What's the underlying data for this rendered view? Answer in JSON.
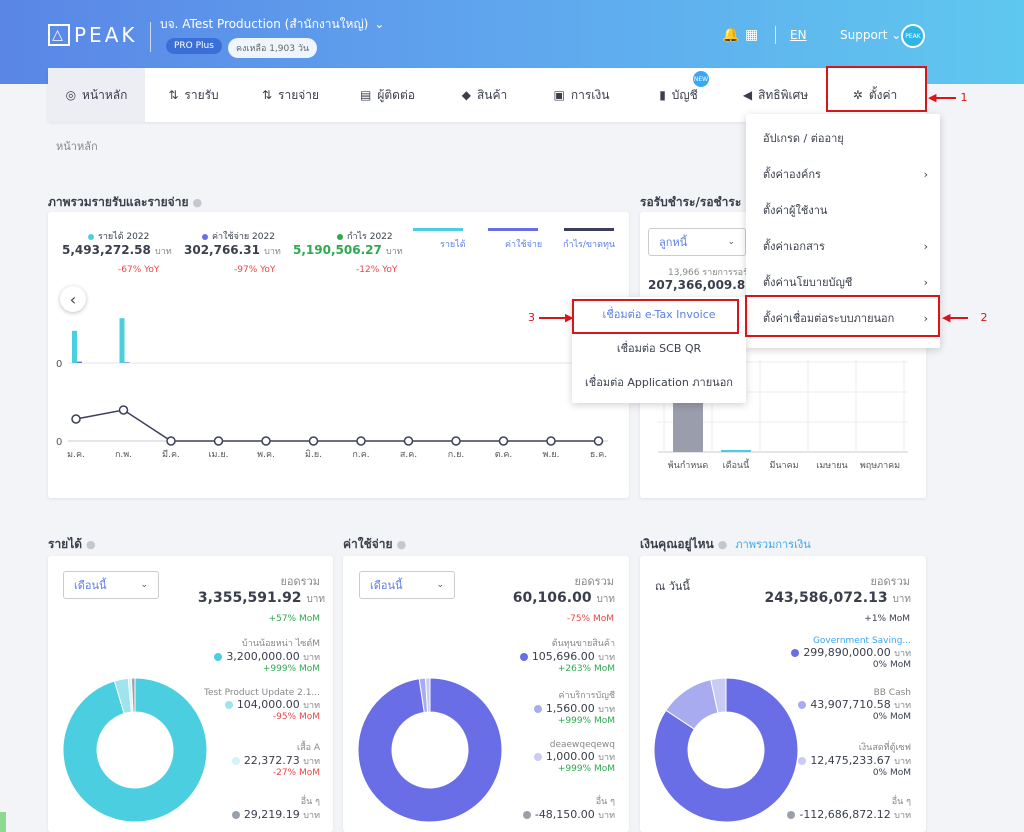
{
  "header": {
    "logo": "PEAK",
    "company": "บจ. ATest Production (สำนักงานใหญ่)",
    "plan": "PRO Plus",
    "remaining": "คงเหลือ 1,903 วัน",
    "lang": "EN",
    "support": "Support",
    "avatar": "PEAK"
  },
  "nav": [
    {
      "label": "หน้าหลัก",
      "icon": "home-icon"
    },
    {
      "label": "รายรับ",
      "icon": "income-icon"
    },
    {
      "label": "รายจ่าย",
      "icon": "expense-icon"
    },
    {
      "label": "ผู้ติดต่อ",
      "icon": "contacts-icon"
    },
    {
      "label": "สินค้า",
      "icon": "products-icon"
    },
    {
      "label": "การเงิน",
      "icon": "finance-icon"
    },
    {
      "label": "บัญชี",
      "icon": "accounting-icon",
      "badge": "NEW"
    },
    {
      "label": "สิทธิพิเศษ",
      "icon": "privilege-icon"
    },
    {
      "label": "ตั้งค่า",
      "icon": "gear-icon"
    }
  ],
  "breadcrumb": "หน้าหลัก",
  "annotations": [
    "1",
    "2",
    "3"
  ],
  "settings_menu": [
    {
      "label": "อัปเกรด / ต่ออายุ",
      "arrow": ""
    },
    {
      "label": "ตั้งค่าองค์กร",
      "arrow": "›"
    },
    {
      "label": "ตั้งค่าผู้ใช้งาน",
      "arrow": ""
    },
    {
      "label": "ตั้งค่าเอกสาร",
      "arrow": "›"
    },
    {
      "label": "ตั้งค่านโยบายบัญชี",
      "arrow": "›"
    },
    {
      "label": "ตั้งค่าเชื่อมต่อระบบภายนอก",
      "arrow": "›"
    }
  ],
  "submenu": [
    "เชื่อมต่อ e-Tax Invoice",
    "เชื่อมต่อ SCB QR",
    "เชื่อมต่อ Application ภายนอก"
  ],
  "overview": {
    "title": "ภาพรวมรายรับและรายจ่าย",
    "stats": [
      {
        "label": "รายได้ 2022",
        "value": "5,493,272.58",
        "unit": "บาท",
        "yoy": "-67% YoY",
        "color": "#4bcfe0"
      },
      {
        "label": "ค่าใช้จ่าย 2022",
        "value": "302,766.31",
        "unit": "บาท",
        "yoy": "-97% YoY",
        "color": "#6a6ee6"
      },
      {
        "label": "กำไร 2022",
        "value": "5,190,506.27",
        "unit": "บาท",
        "yoy": "-12% YoY",
        "color": "#2fa84f"
      }
    ],
    "legend": [
      {
        "name": "รายได้",
        "color": "#4bcfe0"
      },
      {
        "name": "ค่าใช้จ่าย",
        "color": "#6a6ee6"
      },
      {
        "name": "กำไร/ขาดทุน",
        "color": "#3b3f5c"
      }
    ],
    "back": "‹"
  },
  "chart_data": [
    {
      "type": "bar",
      "categories": [
        "ม.ค.",
        "ก.พ.",
        "มี.ค.",
        "เม.ย.",
        "พ.ค.",
        "มิ.ย.",
        "ก.ค.",
        "ส.ค.",
        "ก.ย.",
        "ต.ค.",
        "พ.ย.",
        "ธ.ค."
      ],
      "series": [
        {
          "name": "รายได้",
          "values": [
            2.3,
            3.2,
            0,
            0,
            0,
            0,
            0,
            0,
            0,
            0,
            0,
            0
          ]
        },
        {
          "name": "ค่าใช้จ่าย",
          "values": [
            0.1,
            0.05,
            0,
            0,
            0,
            0,
            0,
            0,
            0,
            0,
            0,
            0
          ]
        }
      ],
      "y_tick": "0"
    },
    {
      "type": "line",
      "categories": [
        "ม.ค.",
        "ก.พ.",
        "มี.ค.",
        "เม.ย.",
        "พ.ค.",
        "มิ.ย.",
        "ก.ค.",
        "ส.ค.",
        "ก.ย.",
        "ต.ค.",
        "พ.ย.",
        "ธ.ค."
      ],
      "series": [
        {
          "name": "กำไร/ขาดทุน",
          "values": [
            2.2,
            3.1,
            0,
            0,
            0,
            0,
            0,
            0,
            0,
            0,
            0,
            0
          ]
        }
      ],
      "y_tick": "0"
    },
    {
      "type": "bar",
      "categories": [
        "พ้นกำหนด",
        "เดือนนี้",
        "มีนาคม",
        "เมษายน",
        "พฤษภาคม"
      ],
      "values": [
        1.0,
        0.02,
        0,
        0,
        0
      ]
    }
  ],
  "receivable": {
    "title": "รอรับชำระ/รอชำระ",
    "select": "ลูกหนี้",
    "count": "13,966 รายการรอรั",
    "amount": "207,366,009.8"
  },
  "income": {
    "title": "รายได้",
    "select": "เดือนนี้",
    "total_label": "ยอดรวม",
    "total": "3,355,591.92",
    "unit": "บาท",
    "mom": "+57% MoM",
    "items": [
      {
        "name": "บ้านน้อยหน่า ไซต์M",
        "value": "3,200,000.00",
        "unit": "บาท",
        "mom": "+999% MoM",
        "color": "#4bcfe0"
      },
      {
        "name": "Test Product Update 2.1...",
        "value": "104,000.00",
        "unit": "บาท",
        "mom": "-95% MoM",
        "color": "#9fe3ec"
      },
      {
        "name": "เสื้อ A",
        "value": "22,372.73",
        "unit": "บาท",
        "mom": "-27% MoM",
        "color": "#d3f3f7"
      },
      {
        "name": "อื่น ๆ",
        "value": "29,219.19",
        "unit": "บาท",
        "mom": "",
        "color": "#9aa0aa"
      }
    ],
    "donut": [
      95.4,
      3.1,
      0.7,
      0.8
    ]
  },
  "expense": {
    "title": "ค่าใช้จ่าย",
    "select": "เดือนนี้",
    "total_label": "ยอดรวม",
    "total": "60,106.00",
    "unit": "บาท",
    "mom": "-75% MoM",
    "items": [
      {
        "name": "ต้นทุนขายสินค้า",
        "value": "105,696.00",
        "unit": "บาท",
        "mom": "+263% MoM",
        "color": "#6a6ee6"
      },
      {
        "name": "ค่าบริการบัญชี",
        "value": "1,560.00",
        "unit": "บาท",
        "mom": "+999% MoM",
        "color": "#a9abf0"
      },
      {
        "name": "deaewqeqewq",
        "value": "1,000.00",
        "unit": "บาท",
        "mom": "+999% MoM",
        "color": "#c9cbf5"
      },
      {
        "name": "อื่น ๆ",
        "value": "-48,150.00",
        "unit": "บาท",
        "mom": "",
        "color": "#9aa0aa"
      }
    ],
    "donut": [
      97.6,
      1.4,
      1.0,
      0
    ]
  },
  "money": {
    "title": "เงินคุณอยู่ไหน",
    "link": "ภาพรวมการเงิน",
    "as_of": "ณ วันนี้",
    "total_label": "ยอดรวม",
    "total": "243,586,072.13",
    "unit": "บาท",
    "mom": "+1% MoM",
    "items": [
      {
        "name": "Government Saving...",
        "value": "299,890,000.00",
        "unit": "บาท",
        "mom": "0% MoM",
        "color": "#6a6ee6"
      },
      {
        "name": "BB Cash",
        "value": "43,907,710.58",
        "unit": "บาท",
        "mom": "0% MoM",
        "color": "#a9abf0"
      },
      {
        "name": "เงินสดที่ตู้เซฟ",
        "value": "12,475,233.67",
        "unit": "บาท",
        "mom": "0% MoM",
        "color": "#c9cbf5"
      },
      {
        "name": "อื่น ๆ",
        "value": "-112,686,872.12",
        "unit": "บาท",
        "mom": "",
        "color": "#9aa0aa"
      }
    ],
    "donut": [
      84.3,
      12.3,
      3.4,
      0
    ]
  }
}
